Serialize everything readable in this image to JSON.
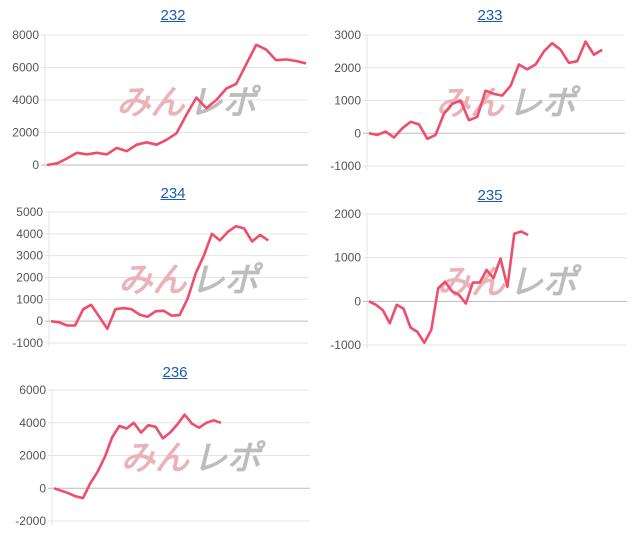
{
  "watermark": {
    "pink": "みん",
    "gray": "レポ"
  },
  "colors": {
    "line": "#ee4d6b",
    "title": "#1a5cb0",
    "grid": "#e4e4e4",
    "zero": "#bbbbbb",
    "watermark_pink": "#e9b3b8",
    "watermark_gray": "#bdbdbd"
  },
  "chart_data": [
    {
      "type": "line",
      "title": "232",
      "ylim": [
        0,
        8000
      ],
      "yticks": [
        0,
        2000,
        4000,
        6000,
        8000
      ],
      "xlim": [
        0,
        26
      ],
      "grid": true,
      "values": [
        0,
        100,
        400,
        750,
        650,
        750,
        650,
        1050,
        850,
        1250,
        1400,
        1250,
        1550,
        1950,
        3100,
        4150,
        3500,
        4000,
        4700,
        5000,
        6200,
        7400,
        7100,
        6450,
        6500,
        6400,
        6250
      ]
    },
    {
      "type": "line",
      "title": "233",
      "ylim": [
        -1000,
        3000
      ],
      "yticks": [
        -1000,
        0,
        1000,
        2000,
        3000
      ],
      "xlim": [
        0,
        30.5
      ],
      "grid": true,
      "values": [
        0,
        -50,
        50,
        -130,
        150,
        350,
        270,
        -170,
        -50,
        600,
        900,
        1000,
        400,
        500,
        1300,
        1200,
        1150,
        1450,
        2100,
        1950,
        2100,
        2500,
        2750,
        2550,
        2150,
        2200,
        2800,
        2400,
        2550
      ]
    },
    {
      "type": "line",
      "title": "234",
      "ylim": [
        -1000,
        5000
      ],
      "yticks": [
        -1000,
        0,
        1000,
        2000,
        3000,
        4000,
        5000
      ],
      "xlim": [
        0,
        31.7
      ],
      "grid": true,
      "values": [
        0,
        -50,
        -200,
        -200,
        550,
        750,
        200,
        -350,
        550,
        600,
        550,
        300,
        200,
        450,
        480,
        250,
        280,
        1050,
        2200,
        3000,
        4000,
        3700,
        4100,
        4350,
        4250,
        3650,
        3950,
        3700
      ]
    },
    {
      "type": "line",
      "title": "235",
      "ylim": [
        -1000,
        2000
      ],
      "yticks": [
        -1000,
        0,
        1000,
        2000
      ],
      "xlim": [
        0,
        37
      ],
      "grid": true,
      "values": [
        0,
        -80,
        -200,
        -500,
        -80,
        -170,
        -600,
        -700,
        -950,
        -650,
        300,
        450,
        230,
        150,
        -50,
        430,
        430,
        720,
        530,
        980,
        330,
        1550,
        1600,
        1520
      ]
    },
    {
      "type": "line",
      "title": "236",
      "ylim": [
        -2000,
        6000
      ],
      "yticks": [
        -2000,
        0,
        2000,
        4000,
        6000
      ],
      "xlim": [
        0,
        35
      ],
      "grid": true,
      "values": [
        0,
        -150,
        -300,
        -500,
        -600,
        300,
        1000,
        1900,
        3100,
        3800,
        3650,
        4000,
        3400,
        3850,
        3750,
        3050,
        3400,
        3900,
        4500,
        3950,
        3700,
        4000,
        4150,
        4000
      ]
    }
  ]
}
